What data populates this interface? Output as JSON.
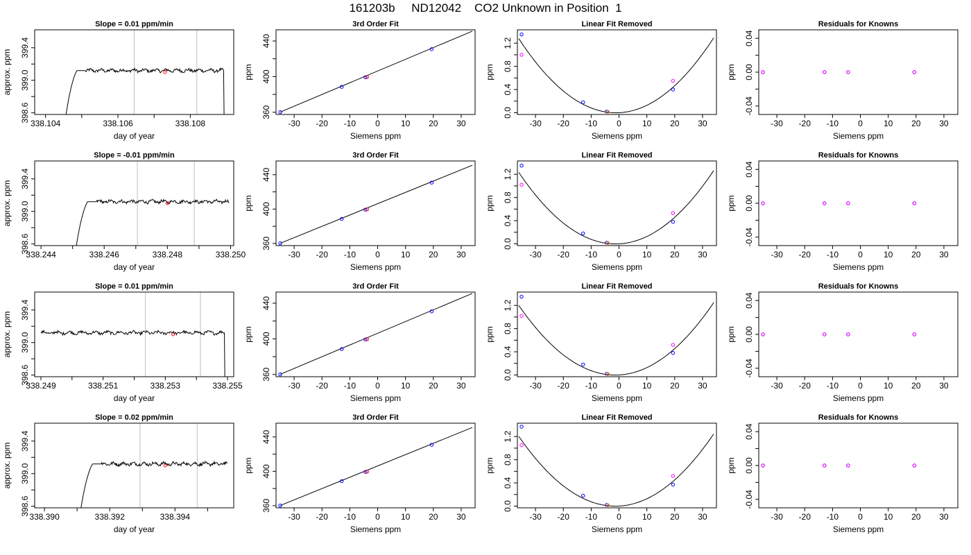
{
  "title": "161203b     ND12042    CO2 Unknown in Position  1",
  "colors": {
    "line": "#000000",
    "gridline": "#bebebe",
    "blue": "#0000ff",
    "magenta": "#ff00ff",
    "red": "#ff0000",
    "orange": "#ff8c00"
  },
  "chart_data": [
    {
      "panel": "1-1",
      "type": "line",
      "title": "Slope =  0.01  ppm/min",
      "xlabel": "day of year",
      "ylabel": "approx. ppm",
      "xlim": [
        338.1037,
        338.1092
      ],
      "ylim": [
        398.58,
        399.62
      ],
      "xticks": [
        "338.104",
        "338.106",
        "338.108"
      ],
      "xtick_values": [
        338.104,
        338.106,
        338.108
      ],
      "xminor": [
        338.105,
        338.107
      ],
      "yticks": [
        "398.6",
        "399.0",
        "399.4"
      ],
      "ytick_values": [
        398.6,
        399.0,
        399.4
      ],
      "yminor": [
        398.8,
        399.2
      ],
      "vlines": [
        338.10645,
        338.10818
      ],
      "marker": {
        "x": 338.1073,
        "y": 399.1
      },
      "trace": {
        "x_start": 338.10455,
        "x_end": 338.10892,
        "rise_end": 338.1051,
        "level": 399.1,
        "drop": true
      }
    },
    {
      "panel": "1-2",
      "type": "scatter",
      "title": "3rd Order Fit",
      "xlabel": "Siemens ppm",
      "ylabel": "ppm",
      "xlim": [
        -36.5,
        35
      ],
      "ylim": [
        357.5,
        452.5
      ],
      "xticks": [
        -30,
        -20,
        -10,
        0,
        10,
        20,
        30
      ],
      "yticks": [
        360,
        400,
        440
      ],
      "yminor": [
        380,
        420
      ],
      "fit_line": {
        "x": [
          -35,
          34
        ],
        "y": [
          360.2,
          451
        ]
      },
      "points": [
        {
          "x": -35,
          "y": 360.2,
          "color": "blue"
        },
        {
          "x": -12.9,
          "y": 388.5,
          "color": "blue"
        },
        {
          "x": -4.4,
          "y": 399.3,
          "color": "blue"
        },
        {
          "x": 19.4,
          "y": 430.8,
          "color": "blue"
        },
        {
          "x": -3.8,
          "y": 399.6,
          "color": "red"
        }
      ]
    },
    {
      "panel": "1-3",
      "type": "scatter",
      "title": "Linear Fit Removed",
      "xlabel": "Siemens ppm",
      "ylabel": "ppm",
      "xlim": [
        -36.5,
        35
      ],
      "ylim": [
        -0.03,
        1.43
      ],
      "xticks": [
        -30,
        -20,
        -10,
        0,
        10,
        20,
        30
      ],
      "yticks": [
        "0.0",
        "0.4",
        "0.8",
        "1.2"
      ],
      "ytick_values": [
        0,
        0.4,
        0.8,
        1.2
      ],
      "yminor": [
        0.2,
        0.6,
        1.0
      ],
      "curve_coef": [
        0.00105,
        0.0023,
        0.0003
      ],
      "points": [
        {
          "x": -35,
          "y": 1.35,
          "color": "blue"
        },
        {
          "x": -12.9,
          "y": 0.18,
          "color": "blue"
        },
        {
          "x": -4.4,
          "y": 0.02,
          "color": "blue"
        },
        {
          "x": 19.4,
          "y": 0.4,
          "color": "blue"
        },
        {
          "x": -35,
          "y": 1.0,
          "color": "magenta"
        },
        {
          "x": 19.4,
          "y": 0.55,
          "color": "magenta"
        },
        {
          "x": -4.0,
          "y": 0.015,
          "color": "orange"
        }
      ]
    },
    {
      "panel": "1-4",
      "type": "scatter",
      "title": "Residuals for Knowns",
      "xlabel": "Siemens ppm",
      "ylabel": "ppm",
      "xlim": [
        -36.5,
        35
      ],
      "ylim": [
        -0.05,
        0.05
      ],
      "xticks": [
        -30,
        -20,
        -10,
        0,
        10,
        20,
        30
      ],
      "yticks": [
        "-0.04",
        "0.00",
        "0.04"
      ],
      "ytick_values": [
        -0.04,
        0,
        0.04
      ],
      "yminor": [
        -0.02,
        0.02
      ],
      "points": [
        {
          "x": -35,
          "y": 0,
          "color": "blue"
        },
        {
          "x": -12.9,
          "y": 0,
          "color": "blue"
        },
        {
          "x": -4.4,
          "y": 0,
          "color": "blue"
        },
        {
          "x": 19.4,
          "y": 0,
          "color": "blue"
        },
        {
          "x": -35,
          "y": 0,
          "color": "magenta"
        },
        {
          "x": -12.9,
          "y": 0,
          "color": "magenta"
        },
        {
          "x": -4.4,
          "y": 0,
          "color": "magenta"
        },
        {
          "x": 19.4,
          "y": 0,
          "color": "magenta"
        }
      ]
    },
    {
      "panel": "2-1",
      "type": "line",
      "title": "Slope =  -0.01  ppm/min",
      "xlabel": "day of year",
      "ylabel": "approx. ppm",
      "xlim": [
        338.2438,
        338.2501
      ],
      "ylim": [
        398.58,
        399.62
      ],
      "xticks": [
        "338.244",
        "338.246",
        "338.248",
        "338.250"
      ],
      "xtick_values": [
        338.244,
        338.246,
        338.248,
        338.25
      ],
      "xminor": [
        338.245,
        338.247,
        338.249
      ],
      "yticks": [
        "398.6",
        "399.0",
        "399.4"
      ],
      "ytick_values": [
        398.6,
        399.0,
        399.4
      ],
      "yminor": [
        398.8,
        399.2
      ],
      "vlines": [
        338.24705,
        338.24885
      ],
      "marker": {
        "x": 338.248,
        "y": 399.1
      },
      "trace": {
        "x_start": 338.2451,
        "x_end": 338.24995,
        "rise_end": 338.24575,
        "level": 399.1,
        "drop": false
      }
    },
    {
      "panel": "2-2",
      "type": "scatter",
      "title": "3rd Order Fit",
      "xlabel": "Siemens ppm",
      "ylabel": "ppm",
      "xlim": [
        -36.5,
        35
      ],
      "ylim": [
        357.5,
        456
      ],
      "xticks": [
        -30,
        -20,
        -10,
        0,
        10,
        20,
        30
      ],
      "yticks": [
        360,
        400,
        440
      ],
      "yminor": [
        380,
        420
      ],
      "fit_line": {
        "x": [
          -35,
          34
        ],
        "y": [
          360.2,
          451
        ]
      },
      "points": [
        {
          "x": -35,
          "y": 360.2,
          "color": "blue"
        },
        {
          "x": -12.9,
          "y": 388.5,
          "color": "blue"
        },
        {
          "x": -4.4,
          "y": 399.3,
          "color": "blue"
        },
        {
          "x": 19.4,
          "y": 430.8,
          "color": "blue"
        },
        {
          "x": -3.8,
          "y": 399.6,
          "color": "red"
        }
      ]
    },
    {
      "panel": "2-3",
      "type": "scatter",
      "title": "Linear Fit Removed",
      "xlabel": "Siemens ppm",
      "ylabel": "ppm",
      "xlim": [
        -36.5,
        35
      ],
      "ylim": [
        -0.03,
        1.43
      ],
      "xticks": [
        -30,
        -20,
        -10,
        0,
        10,
        20,
        30
      ],
      "yticks": [
        "0.0",
        "0.4",
        "0.8",
        "1.2"
      ],
      "ytick_values": [
        0,
        0.4,
        0.8,
        1.2
      ],
      "yminor": [
        0.2,
        0.6,
        1.0
      ],
      "curve_coef": [
        0.00102,
        0.0025,
        0.0003
      ],
      "points": [
        {
          "x": -35,
          "y": 1.35,
          "color": "blue"
        },
        {
          "x": -12.9,
          "y": 0.18,
          "color": "blue"
        },
        {
          "x": -4.4,
          "y": 0.02,
          "color": "blue"
        },
        {
          "x": 19.4,
          "y": 0.38,
          "color": "blue"
        },
        {
          "x": -35,
          "y": 1.02,
          "color": "magenta"
        },
        {
          "x": 19.4,
          "y": 0.53,
          "color": "magenta"
        },
        {
          "x": -4.0,
          "y": 0.015,
          "color": "orange"
        }
      ]
    },
    {
      "panel": "2-4",
      "type": "scatter",
      "title": "Residuals for Knowns",
      "xlabel": "Siemens ppm",
      "ylabel": "ppm",
      "xlim": [
        -36.5,
        35
      ],
      "ylim": [
        -0.05,
        0.05
      ],
      "xticks": [
        -30,
        -20,
        -10,
        0,
        10,
        20,
        30
      ],
      "yticks": [
        "-0.04",
        "0.00",
        "0.04"
      ],
      "ytick_values": [
        -0.04,
        0,
        0.04
      ],
      "yminor": [
        -0.02,
        0.02
      ],
      "points": [
        {
          "x": -35,
          "y": 0,
          "color": "blue"
        },
        {
          "x": -12.9,
          "y": 0,
          "color": "blue"
        },
        {
          "x": -4.4,
          "y": 0,
          "color": "blue"
        },
        {
          "x": 19.4,
          "y": 0,
          "color": "blue"
        },
        {
          "x": -35,
          "y": 0,
          "color": "magenta"
        },
        {
          "x": -12.9,
          "y": 0,
          "color": "magenta"
        },
        {
          "x": -4.4,
          "y": 0,
          "color": "magenta"
        },
        {
          "x": 19.4,
          "y": 0,
          "color": "magenta"
        }
      ]
    },
    {
      "panel": "3-1",
      "type": "line",
      "title": "Slope =  0.01  ppm/min",
      "xlabel": "day of year",
      "ylabel": "approx. ppm",
      "xlim": [
        338.2488,
        338.2552
      ],
      "ylim": [
        398.58,
        399.62
      ],
      "xticks": [
        "338.249",
        "338.251",
        "338.253",
        "338.255"
      ],
      "xtick_values": [
        338.249,
        338.251,
        338.253,
        338.255
      ],
      "xminor": [
        338.25,
        338.252,
        338.254
      ],
      "yticks": [
        "398.6",
        "399.0",
        "399.4"
      ],
      "ytick_values": [
        398.6,
        399.0,
        399.4
      ],
      "yminor": [
        398.8,
        399.2
      ],
      "vlines": [
        338.25236,
        338.25413
      ],
      "marker": {
        "x": 338.25325,
        "y": 399.1
      },
      "trace": {
        "x_start": 338.249,
        "x_end": 338.2549,
        "rise_end": 338.249,
        "level": 399.1,
        "drop": true
      }
    },
    {
      "panel": "3-2",
      "type": "scatter",
      "title": "3rd Order Fit",
      "xlabel": "Siemens ppm",
      "ylabel": "ppm",
      "xlim": [
        -36.5,
        35
      ],
      "ylim": [
        357.5,
        452.5
      ],
      "xticks": [
        -30,
        -20,
        -10,
        0,
        10,
        20,
        30
      ],
      "yticks": [
        360,
        400,
        440
      ],
      "yminor": [
        380,
        420
      ],
      "fit_line": {
        "x": [
          -35,
          34
        ],
        "y": [
          360.2,
          451
        ]
      },
      "points": [
        {
          "x": -35,
          "y": 360.2,
          "color": "blue"
        },
        {
          "x": -12.9,
          "y": 388.5,
          "color": "blue"
        },
        {
          "x": -4.4,
          "y": 399.3,
          "color": "blue"
        },
        {
          "x": 19.4,
          "y": 430.8,
          "color": "blue"
        },
        {
          "x": -3.8,
          "y": 399.6,
          "color": "red"
        }
      ]
    },
    {
      "panel": "3-3",
      "type": "scatter",
      "title": "Linear Fit Removed",
      "xlabel": "Siemens ppm",
      "ylabel": "ppm",
      "xlim": [
        -36.5,
        35
      ],
      "ylim": [
        -0.03,
        1.43
      ],
      "xticks": [
        -30,
        -20,
        -10,
        0,
        10,
        20,
        30
      ],
      "yticks": [
        "0.0",
        "0.4",
        "0.8",
        "1.2"
      ],
      "ytick_values": [
        0,
        0.4,
        0.8,
        1.2
      ],
      "yminor": [
        0.2,
        0.6,
        1.0
      ],
      "curve_coef": [
        0.001,
        0.0027,
        0.0003
      ],
      "points": [
        {
          "x": -35,
          "y": 1.35,
          "color": "blue"
        },
        {
          "x": -12.9,
          "y": 0.18,
          "color": "blue"
        },
        {
          "x": -4.4,
          "y": 0.02,
          "color": "blue"
        },
        {
          "x": 19.4,
          "y": 0.38,
          "color": "blue"
        },
        {
          "x": -35,
          "y": 1.02,
          "color": "magenta"
        },
        {
          "x": 19.4,
          "y": 0.52,
          "color": "magenta"
        },
        {
          "x": -4.0,
          "y": 0.015,
          "color": "orange"
        }
      ]
    },
    {
      "panel": "3-4",
      "type": "scatter",
      "title": "Residuals for Knowns",
      "xlabel": "Siemens ppm",
      "ylabel": "ppm",
      "xlim": [
        -36.5,
        35
      ],
      "ylim": [
        -0.05,
        0.05
      ],
      "xticks": [
        -30,
        -20,
        -10,
        0,
        10,
        20,
        30
      ],
      "yticks": [
        "-0.04",
        "0.00",
        "0.04"
      ],
      "ytick_values": [
        -0.04,
        0,
        0.04
      ],
      "yminor": [
        -0.02,
        0.02
      ],
      "points": [
        {
          "x": -35,
          "y": 0,
          "color": "blue"
        },
        {
          "x": -12.9,
          "y": 0,
          "color": "blue"
        },
        {
          "x": -4.4,
          "y": 0,
          "color": "blue"
        },
        {
          "x": 19.4,
          "y": 0,
          "color": "blue"
        },
        {
          "x": -35,
          "y": 0,
          "color": "magenta"
        },
        {
          "x": -12.9,
          "y": 0,
          "color": "magenta"
        },
        {
          "x": -4.4,
          "y": 0,
          "color": "magenta"
        },
        {
          "x": 19.4,
          "y": 0,
          "color": "magenta"
        }
      ]
    },
    {
      "panel": "4-1",
      "type": "line",
      "title": "Slope =  0.02  ppm/min",
      "xlabel": "day of year",
      "ylabel": "approx. ppm",
      "xlim": [
        338.3897,
        338.3958
      ],
      "ylim": [
        398.58,
        399.62
      ],
      "xticks": [
        "338.390",
        "338.392",
        "338.394"
      ],
      "xtick_values": [
        338.39,
        338.392,
        338.394
      ],
      "xminor": [
        338.391,
        338.393,
        338.395
      ],
      "yticks": [
        "398.6",
        "399.0",
        "399.4"
      ],
      "ytick_values": [
        398.6,
        399.0,
        399.4
      ],
      "yminor": [
        398.8,
        399.2
      ],
      "vlines": [
        338.39293,
        338.39468
      ],
      "marker": {
        "x": 338.3937,
        "y": 399.1
      },
      "trace": {
        "x_start": 338.3911,
        "x_end": 338.3956,
        "rise_end": 338.39175,
        "level": 399.1,
        "drop": false
      }
    },
    {
      "panel": "4-2",
      "type": "scatter",
      "title": "3rd Order Fit",
      "xlabel": "Siemens ppm",
      "ylabel": "ppm",
      "xlim": [
        -36.5,
        35
      ],
      "ylim": [
        357.5,
        456
      ],
      "xticks": [
        -30,
        -20,
        -10,
        0,
        10,
        20,
        30
      ],
      "yticks": [
        360,
        400,
        440
      ],
      "yminor": [
        380,
        420
      ],
      "fit_line": {
        "x": [
          -35,
          34
        ],
        "y": [
          360.2,
          451
        ]
      },
      "points": [
        {
          "x": -35,
          "y": 360.2,
          "color": "blue"
        },
        {
          "x": -12.9,
          "y": 388.5,
          "color": "blue"
        },
        {
          "x": -4.4,
          "y": 399.3,
          "color": "blue"
        },
        {
          "x": 19.4,
          "y": 430.8,
          "color": "blue"
        },
        {
          "x": -3.8,
          "y": 399.6,
          "color": "red"
        }
      ]
    },
    {
      "panel": "4-3",
      "type": "scatter",
      "title": "Linear Fit Removed",
      "xlabel": "Siemens ppm",
      "ylabel": "ppm",
      "xlim": [
        -36.5,
        35
      ],
      "ylim": [
        -0.03,
        1.43
      ],
      "xticks": [
        -30,
        -20,
        -10,
        0,
        10,
        20,
        30
      ],
      "yticks": [
        "0.0",
        "0.4",
        "0.8",
        "1.2"
      ],
      "ytick_values": [
        0,
        0.4,
        0.8,
        1.2
      ],
      "yminor": [
        0.2,
        0.6,
        1.0
      ],
      "curve_coef": [
        0.001,
        0.0026,
        0.0003
      ],
      "points": [
        {
          "x": -35,
          "y": 1.37,
          "color": "blue"
        },
        {
          "x": -12.9,
          "y": 0.18,
          "color": "blue"
        },
        {
          "x": -4.4,
          "y": 0.02,
          "color": "blue"
        },
        {
          "x": 19.4,
          "y": 0.37,
          "color": "blue"
        },
        {
          "x": -35,
          "y": 1.05,
          "color": "magenta"
        },
        {
          "x": 19.4,
          "y": 0.52,
          "color": "magenta"
        },
        {
          "x": -4.0,
          "y": 0.015,
          "color": "orange"
        }
      ]
    },
    {
      "panel": "4-4",
      "type": "scatter",
      "title": "Residuals for Knowns",
      "xlabel": "Siemens ppm",
      "ylabel": "ppm",
      "xlim": [
        -36.5,
        35
      ],
      "ylim": [
        -0.05,
        0.05
      ],
      "xticks": [
        -30,
        -20,
        -10,
        0,
        10,
        20,
        30
      ],
      "yticks": [
        "-0.04",
        "0.00",
        "0.04"
      ],
      "ytick_values": [
        -0.04,
        0,
        0.04
      ],
      "yminor": [
        -0.02,
        0.02
      ],
      "points": [
        {
          "x": -35,
          "y": 0,
          "color": "blue"
        },
        {
          "x": -12.9,
          "y": 0,
          "color": "blue"
        },
        {
          "x": -4.4,
          "y": 0,
          "color": "blue"
        },
        {
          "x": 19.4,
          "y": 0,
          "color": "blue"
        },
        {
          "x": -35,
          "y": 0,
          "color": "magenta"
        },
        {
          "x": -12.9,
          "y": 0,
          "color": "magenta"
        },
        {
          "x": -4.4,
          "y": 0,
          "color": "magenta"
        },
        {
          "x": 19.4,
          "y": 0,
          "color": "magenta"
        }
      ]
    }
  ]
}
